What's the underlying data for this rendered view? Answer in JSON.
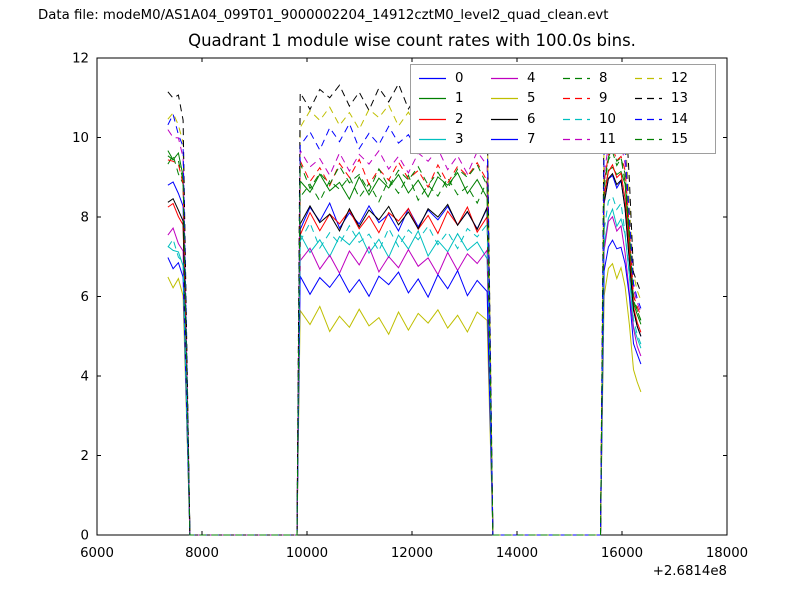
{
  "header": {
    "data_file_label": "Data file: modeM0/AS1A04_099T01_9000002204_14912cztM0_level2_quad_clean.evt"
  },
  "colors": {
    "background": "#ffffff",
    "axes": "#000000",
    "legend_border": "#9e9e9e",
    "palette": {
      "blue": "#0000ff",
      "green": "#007f00",
      "red": "#ff0000",
      "cyan": "#00bfbf",
      "magenta": "#bf00bf",
      "yellow": "#bfbf00",
      "black": "#000000"
    }
  },
  "chart_data": {
    "type": "line",
    "title": "Quadrant 1 module wise count rates with 100.0s bins.",
    "xlabel": "",
    "ylabel": "",
    "x_offset_text": "+2.6814e8",
    "xlim": [
      6000,
      18000
    ],
    "ylim": [
      0,
      12
    ],
    "x_ticks": [
      6000,
      8000,
      10000,
      12000,
      14000,
      16000,
      18000
    ],
    "y_ticks": [
      0,
      2,
      4,
      6,
      8,
      10,
      12
    ],
    "grid": false,
    "legend_position": "upper right",
    "legend_columns": 4,
    "segments_note": "Three exposure intervals; count rate is 0 between them",
    "x_grids": {
      "A": [
        7350,
        7450,
        7550,
        7640
      ],
      "A_zero": [
        7770,
        9810
      ],
      "B_start": 9870,
      "B_end": 13430,
      "B_n": 20,
      "B_zero": [
        13540,
        15590
      ],
      "C": [
        15660,
        15740,
        15820,
        15900,
        15980,
        16060,
        16140,
        16220,
        16290,
        16360
      ]
    },
    "noise": [
      0.0,
      0.45,
      -0.3,
      0.2,
      -0.45,
      0.35,
      -0.15,
      0.5,
      -0.4,
      0.15,
      -0.25,
      0.4,
      -0.2,
      0.1,
      -0.5,
      0.3,
      -0.35,
      0.25,
      -0.1,
      0.38,
      -0.28,
      0.18,
      -0.42,
      0.3
    ],
    "series": [
      {
        "label": "0",
        "color": "#0000ff",
        "linestyle": "solid",
        "a_start": 8.8,
        "b_level": 8.0,
        "c_peak": 9.0,
        "c_end": 5.0
      },
      {
        "label": "1",
        "color": "#007f00",
        "linestyle": "solid",
        "a_start": 9.6,
        "b_level": 8.8,
        "c_peak": 9.4,
        "c_end": 5.3
      },
      {
        "label": "2",
        "color": "#ff0000",
        "linestyle": "solid",
        "a_start": 8.3,
        "b_level": 7.9,
        "c_peak": 9.2,
        "c_end": 5.1
      },
      {
        "label": "3",
        "color": "#00bfbf",
        "linestyle": "solid",
        "a_start": 7.2,
        "b_level": 7.3,
        "c_peak": 8.2,
        "c_end": 4.7
      },
      {
        "label": "4",
        "color": "#bf00bf",
        "linestyle": "solid",
        "a_start": 7.6,
        "b_level": 6.9,
        "c_peak": 7.9,
        "c_end": 4.5
      },
      {
        "label": "5",
        "color": "#bfbf00",
        "linestyle": "solid",
        "a_start": 6.4,
        "b_level": 5.4,
        "c_peak": 6.9,
        "c_end": 3.6
      },
      {
        "label": "6",
        "color": "#000000",
        "linestyle": "solid",
        "a_start": 8.4,
        "b_level": 8.0,
        "c_peak": 9.0,
        "c_end": 5.0
      },
      {
        "label": "7",
        "color": "#0000ff",
        "linestyle": "solid",
        "a_start": 6.9,
        "b_level": 6.3,
        "c_peak": 7.5,
        "c_end": 4.3
      },
      {
        "label": "8",
        "color": "#007f00",
        "linestyle": "dashed",
        "a_start": 9.4,
        "b_level": 8.7,
        "c_peak": 9.6,
        "c_end": 5.4
      },
      {
        "label": "9",
        "color": "#ff0000",
        "linestyle": "dashed",
        "a_start": 9.4,
        "b_level": 9.1,
        "c_peak": 9.8,
        "c_end": 5.5
      },
      {
        "label": "10",
        "color": "#00bfbf",
        "linestyle": "dashed",
        "a_start": 7.3,
        "b_level": 7.5,
        "c_peak": 8.4,
        "c_end": 4.8
      },
      {
        "label": "11",
        "color": "#bf00bf",
        "linestyle": "dashed",
        "a_start": 10.1,
        "b_level": 9.4,
        "c_peak": 10.0,
        "c_end": 5.6
      },
      {
        "label": "12",
        "color": "#bfbf00",
        "linestyle": "dashed",
        "a_start": 10.5,
        "b_level": 10.5,
        "c_peak": 10.9,
        "c_end": 5.9
      },
      {
        "label": "13",
        "color": "#000000",
        "linestyle": "dashed",
        "a_start": 11.1,
        "b_level": 11.0,
        "c_peak": 11.5,
        "c_end": 6.1
      },
      {
        "label": "14",
        "color": "#0000ff",
        "linestyle": "dashed",
        "a_start": 10.4,
        "b_level": 10.0,
        "c_peak": 10.4,
        "c_end": 5.7
      },
      {
        "label": "15",
        "color": "#007f00",
        "linestyle": "dashed",
        "a_start": 9.5,
        "b_level": 9.0,
        "c_peak": 9.7,
        "c_end": 5.4
      }
    ]
  }
}
